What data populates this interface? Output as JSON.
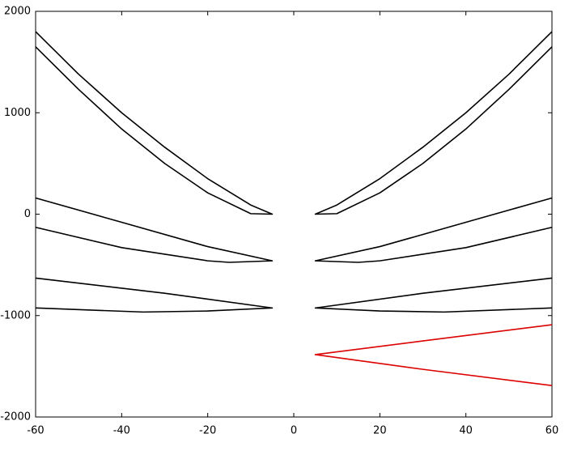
{
  "chart_data": {
    "type": "line",
    "xlim": [
      -60,
      60
    ],
    "xticks": [
      -60,
      -40,
      -20,
      0,
      20,
      40,
      60
    ],
    "ylim": [
      -2000,
      2000
    ],
    "yticks": [
      -2000,
      -1000,
      0,
      1000,
      2000
    ],
    "series": [
      {
        "color": "#000000",
        "x": [
          -60,
          -50,
          -40,
          -30,
          -20,
          -10,
          -5,
          -10,
          -20,
          -30,
          -40,
          -50,
          -60
        ],
        "values": [
          1800,
          1380,
          1000,
          660,
          350,
          90,
          0,
          5,
          210,
          500,
          840,
          1230,
          1650
        ]
      },
      {
        "color": "#000000",
        "x": [
          -60,
          -40,
          -20,
          -5,
          -15,
          -20,
          -40,
          -60
        ],
        "values": [
          160,
          -80,
          -320,
          -460,
          -475,
          -460,
          -330,
          -130
        ]
      },
      {
        "color": "#000000",
        "x": [
          -60,
          -30,
          -5,
          -20,
          -35,
          -60
        ],
        "values": [
          -630,
          -780,
          -925,
          -955,
          -965,
          -925
        ]
      },
      {
        "color": "#000000",
        "x": [
          60,
          50,
          40,
          30,
          20,
          10,
          5,
          10,
          20,
          30,
          40,
          50,
          60
        ],
        "values": [
          1800,
          1380,
          1000,
          660,
          350,
          90,
          0,
          5,
          210,
          500,
          840,
          1230,
          1650
        ]
      },
      {
        "color": "#000000",
        "x": [
          60,
          40,
          20,
          5,
          15,
          20,
          40,
          60
        ],
        "values": [
          160,
          -80,
          -320,
          -460,
          -475,
          -460,
          -330,
          -130
        ]
      },
      {
        "color": "#000000",
        "x": [
          60,
          30,
          5,
          20,
          35,
          60
        ],
        "values": [
          -630,
          -780,
          -925,
          -955,
          -965,
          -925
        ]
      },
      {
        "color": "#dd0000",
        "x": [
          60,
          30,
          5,
          30,
          60
        ],
        "values": [
          -1090,
          -1250,
          -1385,
          -1530,
          -1690
        ]
      }
    ]
  }
}
